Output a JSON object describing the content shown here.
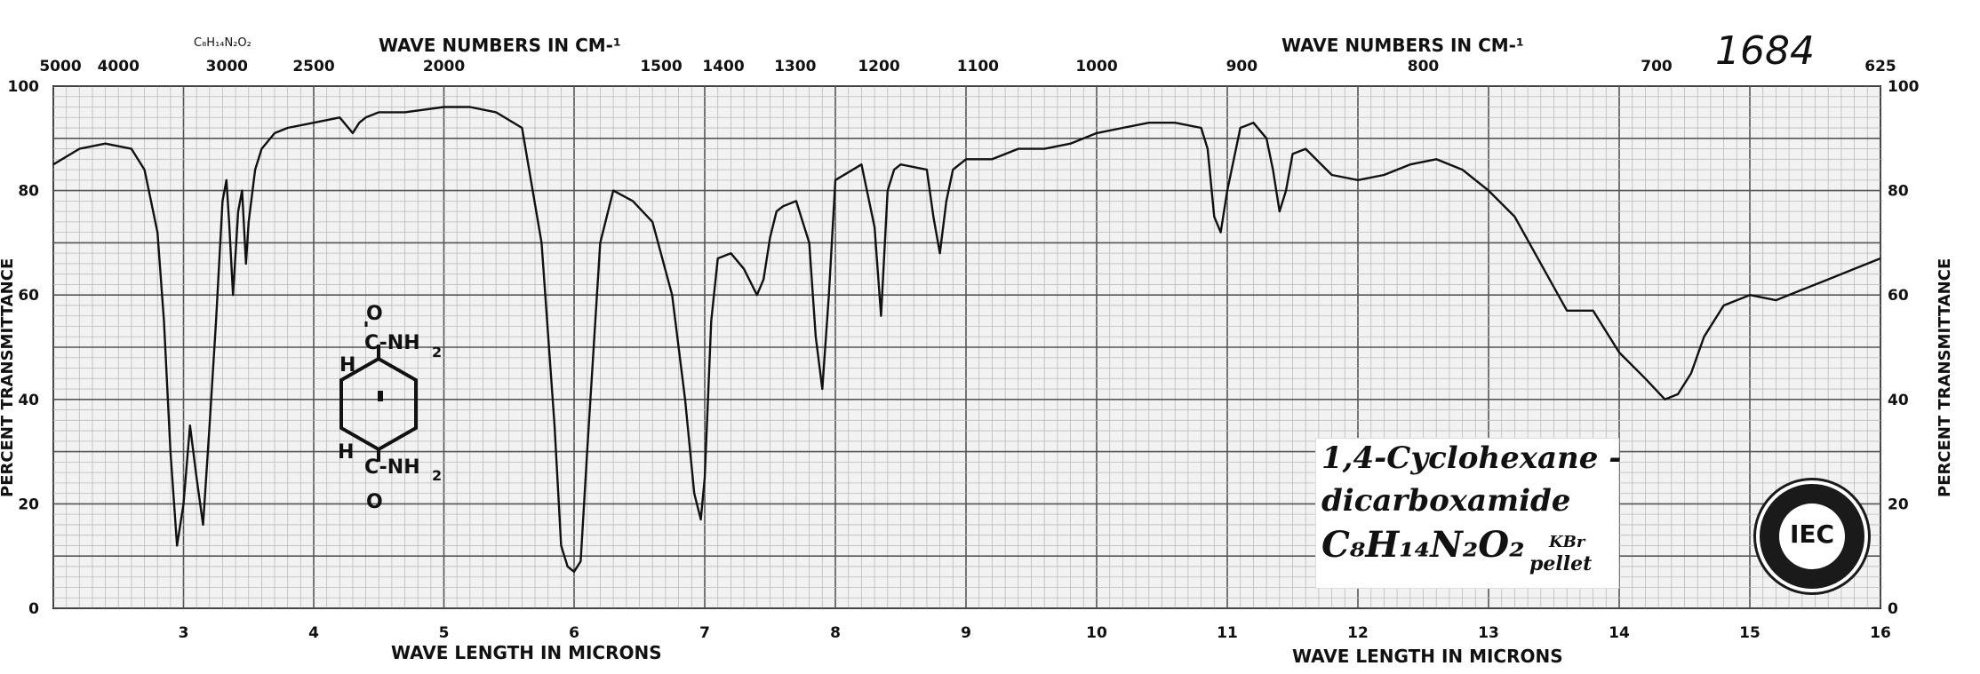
{
  "chart_data": {
    "type": "line",
    "title": "",
    "xlabel": "WAVE LENGTH IN MICRONS",
    "ylabel": "PERCENT TRANSMITTANCE",
    "top_axis_label": "WAVE NUMBERS IN CM-¹",
    "xlim": [
      2.0,
      16.0
    ],
    "ylim": [
      0,
      100
    ],
    "x_ticks": [
      "3",
      "4",
      "5",
      "6",
      "7",
      "8",
      "9",
      "10",
      "11",
      "12",
      "13",
      "14",
      "15",
      "16"
    ],
    "top_ticks": [
      "5000",
      "4000",
      "3000",
      "2500",
      "2000",
      "1500",
      "1400",
      "1300",
      "1200",
      "1100",
      "1000",
      "900",
      "800",
      "700",
      "625"
    ],
    "y_ticks_left": [
      "100",
      "80",
      "60",
      "40",
      "20",
      "0"
    ],
    "y_ticks_right": [
      "100",
      "80",
      "60",
      "40",
      "20",
      "0"
    ],
    "grid": true,
    "series": [
      {
        "x": [
          2.0,
          2.2,
          2.4,
          2.6,
          2.7,
          2.8,
          2.85,
          2.9,
          2.95,
          3.0,
          3.05,
          3.1,
          3.15,
          3.2,
          3.25,
          3.3,
          3.33,
          3.35,
          3.38,
          3.4,
          3.42,
          3.45,
          3.48,
          3.5,
          3.55,
          3.6,
          3.7,
          3.8,
          4.0,
          4.2,
          4.3,
          4.35,
          4.4,
          4.5,
          4.7,
          5.0,
          5.2,
          5.4,
          5.6,
          5.75,
          5.85,
          5.9,
          5.95,
          6.0,
          6.05,
          6.1,
          6.2,
          6.3,
          6.45,
          6.6,
          6.75,
          6.85,
          6.92,
          6.97,
          7.0,
          7.05,
          7.1,
          7.2,
          7.3,
          7.4,
          7.45,
          7.5,
          7.55,
          7.6,
          7.7,
          7.8,
          7.85,
          7.9,
          7.95,
          8.0,
          8.2,
          8.3,
          8.35,
          8.4,
          8.45,
          8.5,
          8.7,
          8.75,
          8.8,
          8.85,
          8.9,
          9.0,
          9.2,
          9.4,
          9.6,
          9.8,
          10.0,
          10.2,
          10.4,
          10.6,
          10.8,
          10.85,
          10.9,
          10.95,
          11.0,
          11.1,
          11.2,
          11.3,
          11.35,
          11.4,
          11.45,
          11.5,
          11.6,
          11.8,
          12.0,
          12.2,
          12.4,
          12.6,
          12.8,
          13.0,
          13.2,
          13.4,
          13.6,
          13.8,
          14.0,
          14.2,
          14.35,
          14.45,
          14.55,
          14.65,
          14.8,
          15.0,
          15.2,
          15.4,
          15.6,
          15.8,
          16.0
        ],
        "y": [
          85,
          88,
          89,
          88,
          84,
          72,
          55,
          30,
          12,
          20,
          35,
          25,
          16,
          35,
          55,
          78,
          82,
          74,
          60,
          68,
          76,
          80,
          66,
          74,
          84,
          88,
          91,
          92,
          93,
          94,
          91,
          93,
          94,
          95,
          95,
          96,
          96,
          95,
          92,
          70,
          35,
          12,
          8,
          7,
          9,
          30,
          70,
          80,
          78,
          74,
          60,
          40,
          22,
          17,
          25,
          55,
          67,
          68,
          65,
          60,
          63,
          71,
          76,
          77,
          78,
          70,
          52,
          42,
          60,
          82,
          85,
          73,
          56,
          80,
          84,
          85,
          84,
          75,
          68,
          78,
          84,
          86,
          86,
          88,
          88,
          89,
          91,
          92,
          93,
          93,
          92,
          88,
          75,
          72,
          80,
          92,
          93,
          90,
          84,
          76,
          80,
          87,
          88,
          83,
          82,
          83,
          85,
          86,
          84,
          80,
          75,
          66,
          57,
          57,
          49,
          44,
          40,
          41,
          45,
          52,
          58,
          60,
          59,
          61,
          63,
          65,
          67
        ]
      }
    ]
  },
  "top_corner_tick": "5000",
  "left_top_tick": "100",
  "formula_top": "C₈H₁₄N₂O₂",
  "annotation_number": "1684",
  "structure": {
    "o_top": "O",
    "c_top": "C-NH",
    "h_top": "H",
    "sub_top": "2",
    "c_bot": "C-NH",
    "h_bot": "H",
    "sub_bot": "2",
    "o_bot": "O"
  },
  "label": {
    "line1": "1,4-Cyclohexane -",
    "line2": "dicarboxamide",
    "formula": "C₈H₁₄N₂O₂",
    "kbr": "KBr",
    "pellet": "pellet"
  }
}
